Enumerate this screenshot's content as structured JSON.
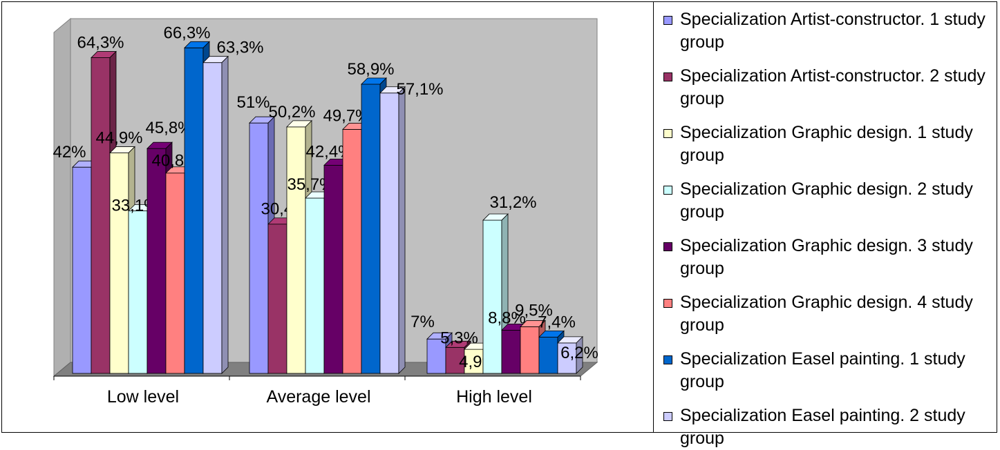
{
  "chart_data": {
    "type": "bar",
    "categories": [
      "Low level",
      "Average level",
      "High level"
    ],
    "ylim": [
      0,
      70
    ],
    "value_format": "%",
    "legend_position": "right",
    "series": [
      {
        "name": "Specialization Artist-constructor. 1 study group",
        "color": "#9999ff",
        "values": [
          42,
          51,
          7
        ],
        "labels": [
          "42%",
          "51%",
          "7%"
        ]
      },
      {
        "name": "Specialization Artist-constructor. 2 study group",
        "color": "#993366",
        "values": [
          64.3,
          30.4,
          5.3
        ],
        "labels": [
          "64,3%",
          "30,4%",
          "5,3%"
        ]
      },
      {
        "name": "Specialization Graphic design. 1 study group",
        "color": "#ffffcc",
        "values": [
          44.9,
          50.2,
          4.9
        ],
        "labels": [
          "44,9%",
          "50,2%",
          "4,9%"
        ]
      },
      {
        "name": "Specialization Graphic design. 2 study group",
        "color": "#ccffff",
        "values": [
          33.1,
          35.7,
          31.2
        ],
        "labels": [
          "33,1%",
          "35,7%",
          "31,2%"
        ]
      },
      {
        "name": "Specialization Graphic design. 3 study group",
        "color": "#660066",
        "values": [
          45.8,
          42.4,
          8.8
        ],
        "labels": [
          "45,8%",
          "42,4%",
          "8,8%"
        ]
      },
      {
        "name": "Specialization Graphic design. 4 study group",
        "color": "#ff8080",
        "values": [
          40.8,
          49.7,
          9.5
        ],
        "labels": [
          "40,8%",
          "49,7%",
          "9,5%"
        ]
      },
      {
        "name": "Specialization Easel painting. 1 study group",
        "color": "#0066cc",
        "values": [
          66.3,
          58.9,
          7.4
        ],
        "labels": [
          "66,3%",
          "58,9%",
          "7,4%"
        ]
      },
      {
        "name": "Specialization Easel painting. 2 study group",
        "color": "#ccccff",
        "values": [
          63.3,
          57.1,
          6.2
        ],
        "labels": [
          "63,3%",
          "57,1%",
          "6,2%"
        ]
      }
    ]
  }
}
